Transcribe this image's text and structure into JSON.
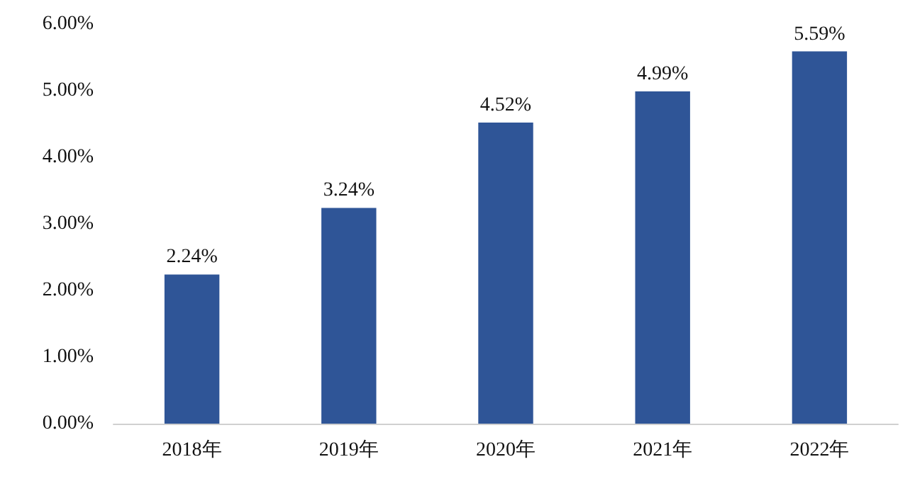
{
  "chart_data": {
    "type": "bar",
    "categories": [
      "2018年",
      "2019年",
      "2020年",
      "2021年",
      "2022年"
    ],
    "values": [
      2.24,
      3.24,
      4.52,
      4.99,
      5.59
    ],
    "value_labels": [
      "2.24%",
      "3.24%",
      "4.52%",
      "4.99%",
      "5.59%"
    ],
    "color": "#2f5597",
    "ylim": [
      0,
      6
    ],
    "yticks": [
      {
        "value": 0,
        "label": "0.00%"
      },
      {
        "value": 1,
        "label": "1.00%"
      },
      {
        "value": 2,
        "label": "2.00%"
      },
      {
        "value": 3,
        "label": "3.00%"
      },
      {
        "value": 4,
        "label": "4.00%"
      },
      {
        "value": 5,
        "label": "5.00%"
      },
      {
        "value": 6,
        "label": "6.00%"
      }
    ],
    "grid": false
  }
}
